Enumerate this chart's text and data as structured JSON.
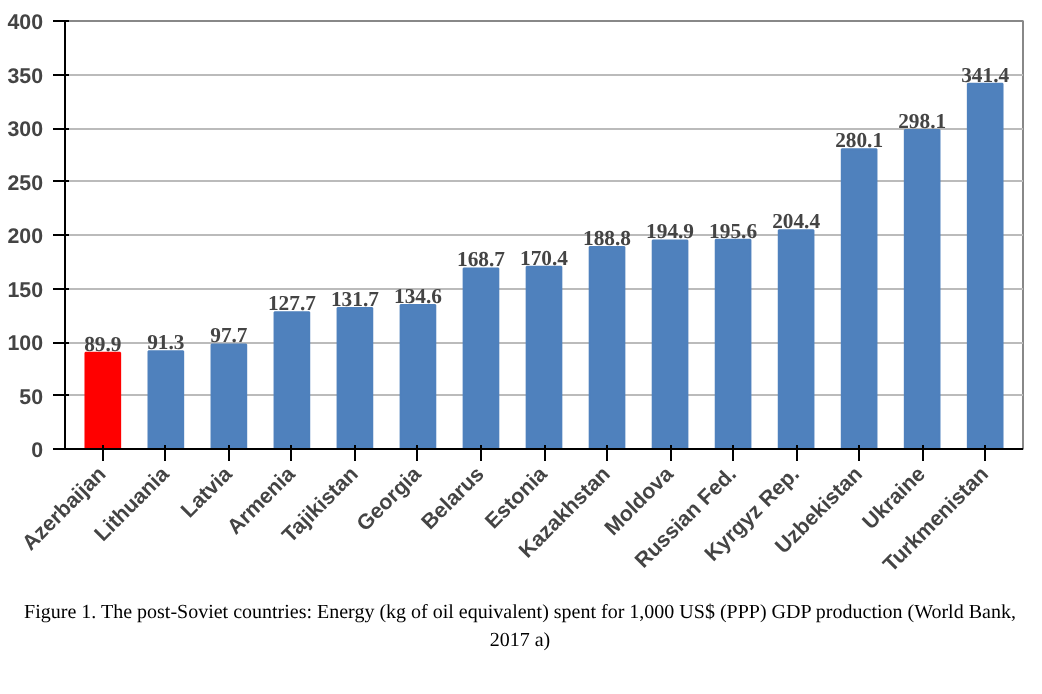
{
  "chart_data": {
    "type": "bar",
    "categories": [
      "Azerbaijan",
      "Lithuania",
      "Latvia",
      "Armenia",
      "Tajikistan",
      "Georgia",
      "Belarus",
      "Estonia",
      "Kazakhstan",
      "Moldova",
      "Russian Fed.",
      "Kyrgyz Rep.",
      "Uzbekistan",
      "Ukraine",
      "Turkmenistan"
    ],
    "values": [
      89.9,
      91.3,
      97.7,
      127.7,
      131.7,
      134.6,
      168.7,
      170.4,
      188.8,
      194.9,
      195.6,
      204.4,
      280.1,
      298.1,
      341.4
    ],
    "colors": [
      "#ff0000",
      "#4f81bd",
      "#4f81bd",
      "#4f81bd",
      "#4f81bd",
      "#4f81bd",
      "#4f81bd",
      "#4f81bd",
      "#4f81bd",
      "#4f81bd",
      "#4f81bd",
      "#4f81bd",
      "#4f81bd",
      "#4f81bd",
      "#4f81bd"
    ],
    "ylim": [
      0,
      400
    ],
    "yticks": [
      0,
      50,
      100,
      150,
      200,
      250,
      300,
      350,
      400
    ],
    "grid": "y",
    "data_labels": true,
    "annotations": [
      "Figure 1. The post-Soviet countries: Energy (kg of oil equivalent) spent for 1,000 US$ (PPP) GDP production (World Bank, 2017 a)"
    ]
  }
}
